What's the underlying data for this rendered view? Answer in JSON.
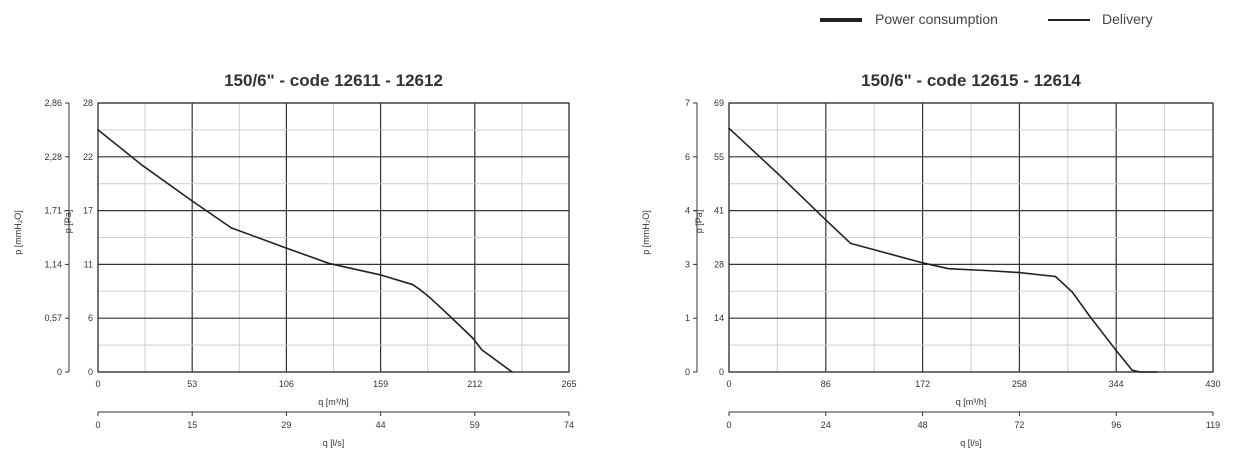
{
  "legend": {
    "items": [
      {
        "label": "Power consumption",
        "style": "thick"
      },
      {
        "label": "Delivery",
        "style": "thin"
      }
    ]
  },
  "chart_data": [
    {
      "type": "line",
      "title": "150/6\" - code 12611 - 12612",
      "xlabel": "q [m³/h]",
      "x2label": "q [l/s]",
      "ylabel": "p [Pa]",
      "y2label": "p [mmH₂O]",
      "xlim": [
        0,
        265
      ],
      "ylim": [
        0,
        28
      ],
      "x_ticks": [
        "0",
        "53",
        "106",
        "159",
        "212",
        "265"
      ],
      "x2_ticks": [
        "0",
        "15",
        "29",
        "44",
        "59",
        "74"
      ],
      "y_ticks": [
        "0",
        "6",
        "11",
        "17",
        "22",
        "28"
      ],
      "y2_ticks": [
        "0",
        "0,57",
        "1,14",
        "1,71",
        "2,28",
        "2,86"
      ],
      "grid": true,
      "series": [
        {
          "x": [
            0,
            25,
            53,
            75,
            106,
            130,
            159,
            177,
            181,
            187,
            194,
            202,
            211,
            216,
            233
          ],
          "y": [
            25.2,
            21.5,
            17.8,
            15,
            12.9,
            11.3,
            10.1,
            9.1,
            8.6,
            7.7,
            6.5,
            5.1,
            3.5,
            2.3,
            0
          ]
        }
      ]
    },
    {
      "type": "line",
      "title": "150/6\" - code 12615 - 12614",
      "xlabel": "q [m³/h]",
      "x2label": "q [l/s]",
      "ylabel": "p [Pa]",
      "y2label": "p [mmH₂O]",
      "xlim": [
        0,
        430
      ],
      "ylim": [
        0,
        69
      ],
      "x_ticks": [
        "0",
        "86",
        "172",
        "258",
        "344",
        "430"
      ],
      "x2_ticks": [
        "0",
        "24",
        "48",
        "72",
        "96",
        "119"
      ],
      "y_ticks": [
        "0",
        "14",
        "28",
        "41",
        "55",
        "69"
      ],
      "y2_ticks": [
        "0",
        "1",
        "3",
        "4",
        "6",
        "7"
      ],
      "grid": true,
      "series": [
        {
          "x": [
            0,
            43,
            86,
            108,
            140,
            172,
            195,
            230,
            258,
            290,
            305,
            320,
            344,
            358,
            365,
            380
          ],
          "y": [
            62.5,
            51,
            39,
            33,
            30.5,
            28,
            26.5,
            26,
            25.5,
            24.5,
            20.5,
            14.5,
            5.5,
            0.5,
            0,
            0
          ]
        }
      ]
    }
  ]
}
